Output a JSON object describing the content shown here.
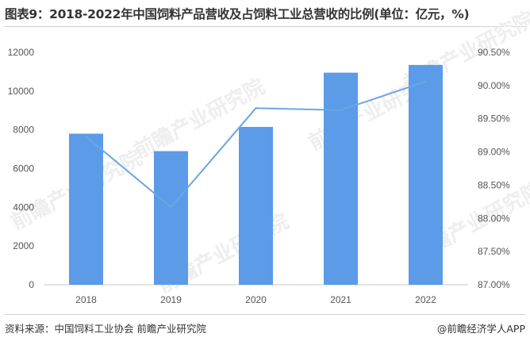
{
  "title": "图表9：2018-2022年中国饲料产品营收及占饲料工业总营收的比例(单位：亿元，%)",
  "source": "资料来源：中国饲料工业协会 前瞻产业研究院",
  "credit": "@前瞻经济学人APP",
  "watermark": "前瞻产业研究院",
  "colors": {
    "bar": "#5b9be8",
    "line": "#6aa7e6",
    "grid": "#e3e3e3"
  },
  "chart_data": {
    "type": "bar",
    "categories": [
      "2018",
      "2019",
      "2020",
      "2021",
      "2022"
    ],
    "series": [
      {
        "type": "bar",
        "axis": "left",
        "values": [
          7800,
          6900,
          8150,
          10950,
          11350
        ]
      },
      {
        "type": "line",
        "axis": "right",
        "values": [
          89.23,
          88.17,
          89.66,
          89.63,
          90.06
        ]
      }
    ],
    "y_left": {
      "min": 0,
      "max": 12000,
      "ticks": [
        "0",
        "2000",
        "4000",
        "6000",
        "8000",
        "10000",
        "12000"
      ]
    },
    "y_right": {
      "min": 87.0,
      "max": 90.5,
      "ticks": [
        "87.00%",
        "87.50%",
        "88.00%",
        "88.50%",
        "89.00%",
        "89.50%",
        "90.00%",
        "90.50%"
      ]
    },
    "grid": false,
    "legend": "none"
  }
}
